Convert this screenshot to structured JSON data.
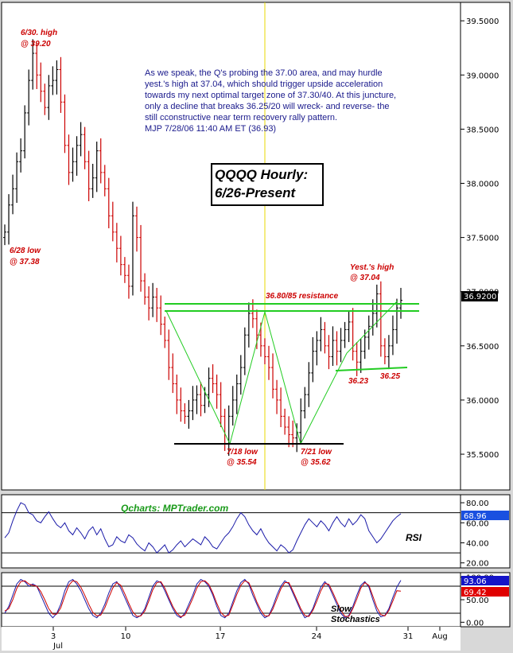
{
  "chart_data": [
    {
      "type": "line",
      "title": "QQQQ Hourly: 6/26-Present",
      "title_lines": [
        "QQQQ Hourly:",
        "6/26-Present"
      ],
      "xlabel": "",
      "ylabel": "",
      "ylim": [
        35.17,
        39.67
      ],
      "y_ticks": [
        "39.5000",
        "39.0000",
        "38.5000",
        "38.0000",
        "37.5000",
        "37.0000",
        "36.5000",
        "36.0000",
        "35.5000"
      ],
      "y_tick_values": [
        39.5,
        39.0,
        38.5,
        38.0,
        37.5,
        37.0,
        36.5,
        36.0,
        35.5
      ],
      "x_ticks": [
        "3",
        "10",
        "17",
        "24",
        "31",
        "Aug"
      ],
      "x_tick_sub": [
        "Jul",
        "",
        "",
        "",
        "",
        ""
      ],
      "last_price_label": "36.9200",
      "last_price": 36.92,
      "commentary": [
        "As we speak, the Q's probing the 37.00 area, and may hurdle",
        "yest.'s high at 37.04, which should trigger upside acceleration",
        "towards my next optimal target zone of 37.30/40. At this juncture,",
        "only a decline that breaks 36.25/20 will wreck- and reverse- the",
        "still cconstructive near term recovery rally pattern.",
        "MJP  7/28/06  11:40 AM ET (36.93)"
      ],
      "annotations": [
        {
          "lines": [
            "6/30. high",
            "@ 39.20"
          ]
        },
        {
          "lines": [
            "6/28 low",
            "@ 37.38"
          ]
        },
        {
          "lines": [
            "7/18 low",
            "@ 35.54"
          ]
        },
        {
          "lines": [
            "7/21 low",
            "@ 35.62"
          ]
        },
        {
          "lines": [
            "36.80/85 resistance"
          ]
        },
        {
          "lines": [
            "Yest.'s high",
            "@ 37.04"
          ]
        },
        {
          "lines": [
            "36.23"
          ]
        },
        {
          "lines": [
            "36.25"
          ]
        }
      ],
      "resistance_levels": [
        36.85,
        36.8
      ],
      "support_level_low": 35.54,
      "support_level_high": 36.23,
      "series": [
        {
          "values": [
            37.55,
            37.8,
            37.95,
            38.2,
            38.3,
            38.65,
            38.95,
            39.2,
            39.0,
            38.85,
            38.7,
            38.9,
            38.95,
            39.05,
            38.75,
            38.35,
            38.1,
            38.2,
            38.35,
            38.45,
            38.2,
            37.95,
            38.05,
            38.3,
            38.1,
            37.95,
            37.7,
            37.55,
            37.4,
            37.25,
            37.15,
            37.05,
            37.7,
            37.5,
            37.1,
            36.95,
            36.85,
            36.95,
            36.85,
            36.7,
            36.55,
            36.3,
            36.15,
            36.0,
            35.9,
            35.85,
            35.9,
            36.0,
            36.05,
            35.95,
            36.05,
            36.2,
            36.15,
            36.05,
            35.85,
            35.6,
            35.85,
            36.0,
            36.15,
            36.3,
            36.6,
            36.8,
            36.75,
            36.6,
            36.5,
            36.4,
            36.3,
            36.1,
            36.0,
            35.85,
            35.75,
            35.68,
            35.65,
            35.7,
            35.9,
            36.05,
            36.25,
            36.45,
            36.55,
            36.65,
            36.5,
            36.4,
            36.55,
            36.45,
            36.55,
            36.65,
            36.72,
            36.45,
            36.35,
            36.45,
            36.58,
            36.68,
            36.8,
            36.98,
            36.5,
            36.4,
            36.5,
            36.65,
            36.85,
            36.92
          ]
        }
      ]
    },
    {
      "type": "line",
      "title": "RSI",
      "watermark": "Qcharts: MPTrader.com",
      "ylim": [
        15,
        88
      ],
      "y_ticks": [
        "80.00",
        "60.00",
        "40.00",
        "20.00"
      ],
      "y_tick_values": [
        80,
        60,
        40,
        20
      ],
      "reference_lines": [
        70,
        30
      ],
      "current_value_label": "68.96",
      "current_value": 68.96,
      "series": [
        {
          "name": "RSI",
          "values": [
            45,
            50,
            62,
            72,
            80,
            78,
            70,
            68,
            62,
            60,
            66,
            71,
            64,
            58,
            55,
            60,
            52,
            48,
            55,
            50,
            44,
            52,
            56,
            48,
            54,
            44,
            36,
            38,
            46,
            42,
            40,
            48,
            45,
            39,
            35,
            32,
            40,
            36,
            30,
            34,
            38,
            30,
            33,
            38,
            42,
            36,
            40,
            44,
            41,
            38,
            46,
            42,
            36,
            34,
            40,
            46,
            50,
            56,
            64,
            70,
            66,
            58,
            52,
            48,
            54,
            46,
            40,
            36,
            32,
            38,
            35,
            30,
            33,
            42,
            50,
            58,
            64,
            60,
            56,
            62,
            58,
            52,
            60,
            66,
            60,
            56,
            64,
            58,
            62,
            68,
            64,
            52,
            46,
            40,
            44,
            50,
            56,
            62,
            66,
            69
          ]
        }
      ]
    },
    {
      "type": "line",
      "title": "Slow Stochastics",
      "title_lines": [
        "Slow",
        "Stochastics"
      ],
      "ylim": [
        -10,
        110
      ],
      "y_ticks": [
        "100.00",
        "50.00",
        "0.00"
      ],
      "y_tick_values": [
        100,
        50,
        0
      ],
      "reference_lines": [
        80,
        20
      ],
      "current_value_labels": [
        "93.06",
        "69.42"
      ],
      "current_values": [
        93.06,
        69.42
      ],
      "colors": {
        "fast": "#1a1aa8",
        "slow": "#cc0000",
        "fast_badge": "#1414c8",
        "slow_badge": "#e00000"
      },
      "series": [
        {
          "values": [
            20,
            35,
            60,
            85,
            95,
            90,
            80,
            85,
            80,
            60,
            40,
            20,
            10,
            20,
            40,
            70,
            90,
            95,
            85,
            70,
            50,
            30,
            15,
            10,
            20,
            40,
            65,
            85,
            90,
            75,
            55,
            35,
            15,
            10,
            15,
            30,
            55,
            80,
            92,
            88,
            70,
            50,
            30,
            15,
            10,
            20,
            40,
            60,
            85,
            95,
            90,
            80,
            60,
            35,
            15,
            10,
            20,
            45,
            70,
            88,
            95,
            85,
            60,
            40,
            20,
            10,
            15,
            35,
            60,
            80,
            92,
            85,
            65,
            45,
            25,
            10,
            15,
            30,
            55,
            78,
            90,
            80,
            60,
            40,
            20,
            10,
            15,
            35,
            60,
            82,
            90,
            78,
            50,
            25,
            12,
            15,
            30,
            55,
            78,
            93
          ]
        },
        {
          "values": [
            25,
            30,
            50,
            75,
            90,
            92,
            85,
            82,
            80,
            68,
            50,
            30,
            18,
            18,
            32,
            58,
            82,
            92,
            90,
            78,
            60,
            40,
            22,
            14,
            16,
            32,
            55,
            76,
            88,
            82,
            63,
            42,
            23,
            13,
            14,
            25,
            47,
            72,
            88,
            90,
            76,
            55,
            35,
            20,
            12,
            16,
            33,
            53,
            76,
            90,
            92,
            84,
            65,
            42,
            22,
            13,
            16,
            38,
            62,
            82,
            92,
            88,
            68,
            45,
            27,
            14,
            14,
            29,
            52,
            74,
            88,
            88,
            70,
            50,
            30,
            15,
            13,
            26,
            47,
            70,
            86,
            84,
            66,
            46,
            27,
            13,
            13,
            30,
            52,
            76,
            88,
            82,
            58,
            33,
            17,
            14,
            26,
            47,
            70,
            69
          ]
        }
      ]
    }
  ]
}
